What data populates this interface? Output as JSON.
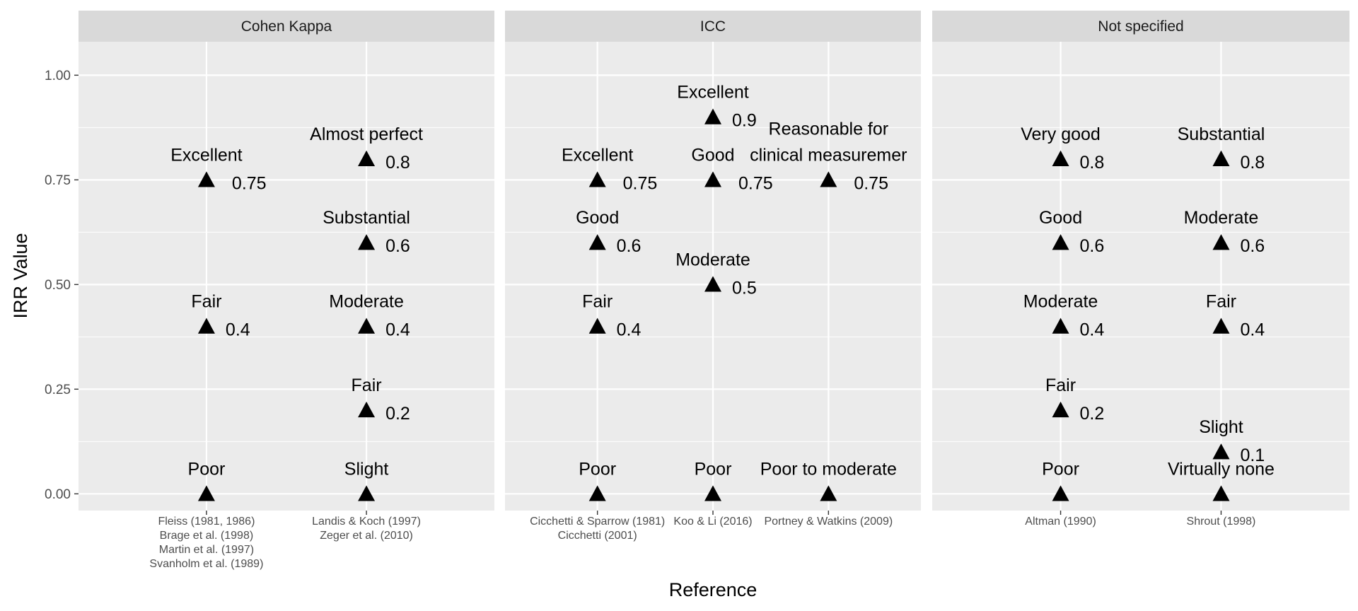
{
  "chart_data": {
    "type": "scatter",
    "xlabel": "Reference",
    "ylabel": "IRR Value",
    "ylim": [
      -0.04,
      1.08
    ],
    "y_ticks": [
      0.0,
      0.25,
      0.5,
      0.75,
      1.0
    ],
    "y_tick_labels": [
      "0.00",
      "0.25",
      "0.50",
      "0.75",
      "1.00"
    ],
    "grid": true,
    "marker": "triangle",
    "colors": {
      "panel_bg": "#ebebeb",
      "strip_bg": "#d9d9d9",
      "grid": "#ffffff",
      "marker": "#000000"
    },
    "panels": [
      {
        "strip": "Cohen Kappa",
        "references": [
          {
            "label_lines": [
              "Fleiss (1981, 1986)",
              "Brage et al. (1998)",
              "Martin et al. (1997)",
              "Svanholm et al. (1989)"
            ],
            "points": [
              {
                "y": 0.75,
                "label": "Excellent",
                "value": "0.75"
              },
              {
                "y": 0.4,
                "label": "Fair",
                "value": "0.4"
              },
              {
                "y": 0.0,
                "label": "Poor",
                "value": ""
              }
            ]
          },
          {
            "label_lines": [
              "Landis & Koch (1997)",
              "Zeger et al. (2010)"
            ],
            "points": [
              {
                "y": 0.8,
                "label": "Almost perfect",
                "value": "0.8"
              },
              {
                "y": 0.6,
                "label": "Substantial",
                "value": "0.6"
              },
              {
                "y": 0.4,
                "label": "Moderate",
                "value": "0.4"
              },
              {
                "y": 0.2,
                "label": "Fair",
                "value": "0.2"
              },
              {
                "y": 0.0,
                "label": "Slight",
                "value": ""
              }
            ]
          }
        ]
      },
      {
        "strip": "ICC",
        "references": [
          {
            "label_lines": [
              "Cicchetti & Sparrow (1981)",
              "Cicchetti (2001)"
            ],
            "points": [
              {
                "y": 0.75,
                "label": "Excellent",
                "value": "0.75"
              },
              {
                "y": 0.6,
                "label": "Good",
                "value": "0.6"
              },
              {
                "y": 0.4,
                "label": "Fair",
                "value": "0.4"
              },
              {
                "y": 0.0,
                "label": "Poor",
                "value": ""
              }
            ]
          },
          {
            "label_lines": [
              "Koo & Li (2016)"
            ],
            "points": [
              {
                "y": 0.9,
                "label": "Excellent",
                "value": "0.9"
              },
              {
                "y": 0.75,
                "label": "Good",
                "value": "0.75"
              },
              {
                "y": 0.5,
                "label": "Moderate",
                "value": "0.5"
              },
              {
                "y": 0.0,
                "label": "Poor",
                "value": ""
              }
            ]
          },
          {
            "label_lines": [
              "Portney & Watkins (2009)"
            ],
            "points": [
              {
                "y": 0.75,
                "label": "Reasonable for\nclinical measuremer",
                "value": "0.75"
              },
              {
                "y": 0.0,
                "label": "Poor to moderate",
                "value": ""
              }
            ]
          }
        ]
      },
      {
        "strip": "Not specified",
        "references": [
          {
            "label_lines": [
              "Altman (1990)"
            ],
            "points": [
              {
                "y": 0.8,
                "label": "Very good",
                "value": "0.8"
              },
              {
                "y": 0.6,
                "label": "Good",
                "value": "0.6"
              },
              {
                "y": 0.4,
                "label": "Moderate",
                "value": "0.4"
              },
              {
                "y": 0.2,
                "label": "Fair",
                "value": "0.2"
              },
              {
                "y": 0.0,
                "label": "Poor",
                "value": ""
              }
            ]
          },
          {
            "label_lines": [
              "Shrout (1998)"
            ],
            "points": [
              {
                "y": 0.8,
                "label": "Substantial",
                "value": "0.8"
              },
              {
                "y": 0.6,
                "label": "Moderate",
                "value": "0.6"
              },
              {
                "y": 0.4,
                "label": "Fair",
                "value": "0.4"
              },
              {
                "y": 0.1,
                "label": "Slight",
                "value": "0.1"
              },
              {
                "y": 0.0,
                "label": "Virtually none",
                "value": ""
              }
            ]
          }
        ]
      }
    ]
  }
}
